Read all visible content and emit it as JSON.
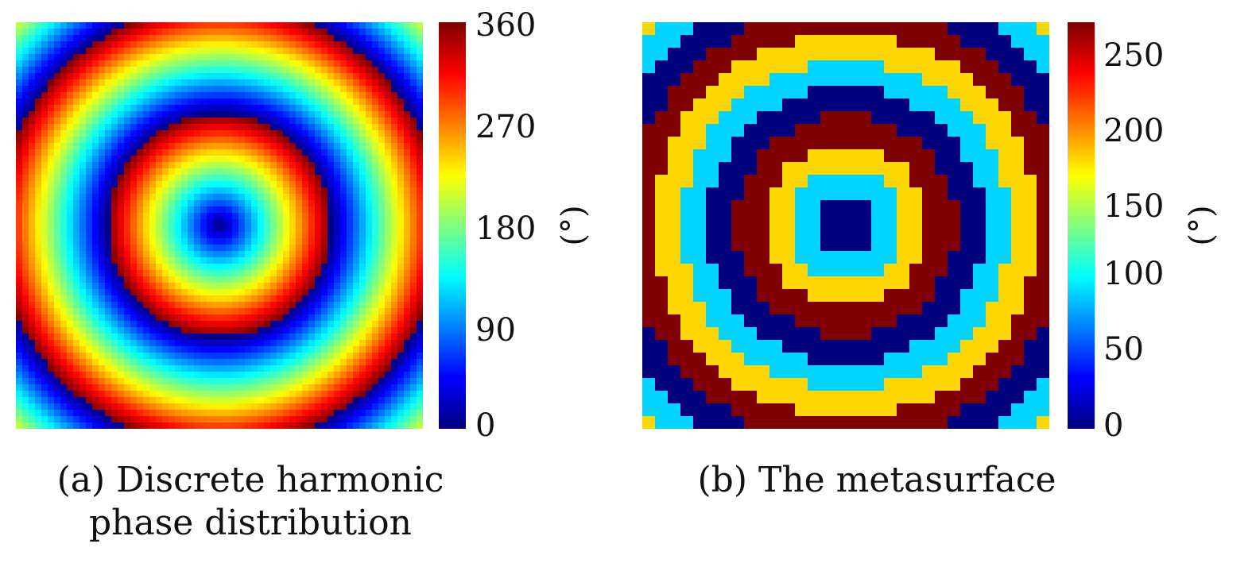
{
  "chart_data": [
    {
      "type": "heatmap",
      "panel": "(a)",
      "caption_line1": "(a) Discrete harmonic",
      "caption_line2": "phase distribution",
      "colorbar": {
        "colormap": "jet",
        "min": 0,
        "max": 360,
        "ticks": [
          "360",
          "270",
          "180",
          "90",
          "0"
        ],
        "unit": "(°)"
      },
      "grid": {
        "cells": 64,
        "pattern": "concentric rings",
        "rings_from_center_to_corner": 2.6
      }
    },
    {
      "type": "heatmap",
      "panel": "(b)",
      "caption_line1": "(b) The metasurface",
      "colorbar": {
        "colormap": "jet",
        "min": 0,
        "max": 270,
        "ticks": [
          "250",
          "200",
          "150",
          "100",
          "50",
          "0"
        ],
        "unit": "(°)"
      },
      "grid": {
        "cells": 32,
        "pattern": "concentric rings, quantized",
        "levels": [
          0,
          90,
          180,
          270
        ],
        "level_colors": [
          "#00007f",
          "#00d4ff",
          "#ffd700",
          "#7f0000"
        ]
      }
    }
  ]
}
